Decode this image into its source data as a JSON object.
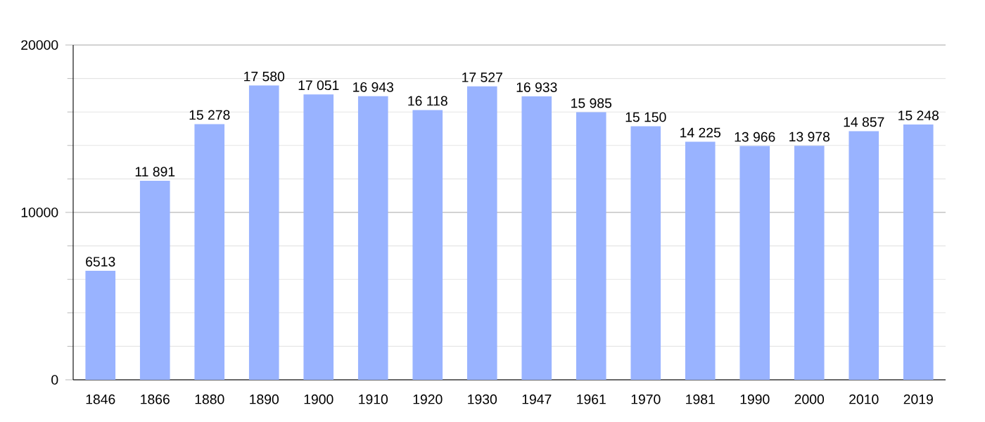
{
  "chart_data": {
    "type": "bar",
    "categories": [
      "1846",
      "1866",
      "1880",
      "1890",
      "1900",
      "1910",
      "1920",
      "1930",
      "1947",
      "1961",
      "1970",
      "1981",
      "1990",
      "2000",
      "2010",
      "2019"
    ],
    "values": [
      6513,
      11891,
      15278,
      17580,
      17051,
      16943,
      16118,
      17527,
      16933,
      15985,
      15150,
      14225,
      13966,
      13978,
      14857,
      15248
    ],
    "value_labels": [
      "6513",
      "11 891",
      "15 278",
      "17 580",
      "17 051",
      "16 943",
      "16 118",
      "17 527",
      "16 933",
      "15 985",
      "15 150",
      "14 225",
      "13 966",
      "13 978",
      "14 857",
      "15 248"
    ],
    "color": "#99b3ff",
    "ylim": [
      0,
      20000
    ],
    "yticks": [
      0,
      10000,
      20000
    ],
    "grid": true
  }
}
